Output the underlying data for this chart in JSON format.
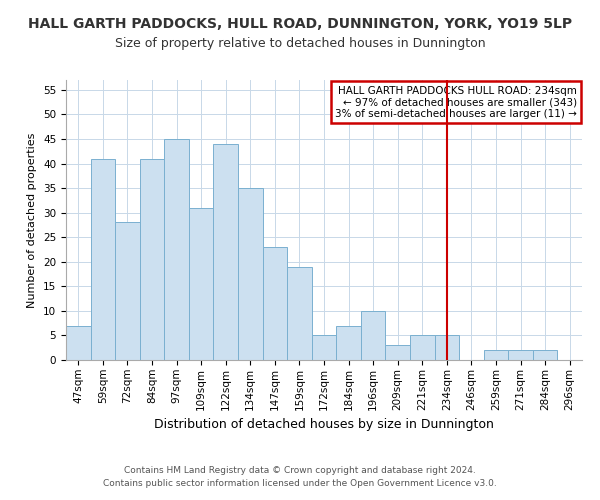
{
  "title": "HALL GARTH PADDOCKS, HULL ROAD, DUNNINGTON, YORK, YO19 5LP",
  "subtitle": "Size of property relative to detached houses in Dunnington",
  "xlabel": "Distribution of detached houses by size in Dunnington",
  "ylabel": "Number of detached properties",
  "bar_labels": [
    "47sqm",
    "59sqm",
    "72sqm",
    "84sqm",
    "97sqm",
    "109sqm",
    "122sqm",
    "134sqm",
    "147sqm",
    "159sqm",
    "172sqm",
    "184sqm",
    "196sqm",
    "209sqm",
    "221sqm",
    "234sqm",
    "246sqm",
    "259sqm",
    "271sqm",
    "284sqm",
    "296sqm"
  ],
  "bar_values": [
    7,
    41,
    28,
    41,
    45,
    31,
    44,
    35,
    23,
    19,
    5,
    7,
    10,
    3,
    5,
    5,
    0,
    2,
    2,
    2,
    0
  ],
  "bar_color": "#cce0f0",
  "bar_edge_color": "#7ab0d0",
  "ylim": [
    0,
    57
  ],
  "yticks": [
    0,
    5,
    10,
    15,
    20,
    25,
    30,
    35,
    40,
    45,
    50,
    55
  ],
  "vline_x_index": 15,
  "vline_color": "#cc0000",
  "annotation_title": "HALL GARTH PADDOCKS HULL ROAD: 234sqm",
  "annotation_line1": "← 97% of detached houses are smaller (343)",
  "annotation_line2": "3% of semi-detached houses are larger (11) →",
  "annotation_box_color": "#cc0000",
  "footer1": "Contains HM Land Registry data © Crown copyright and database right 2024.",
  "footer2": "Contains public sector information licensed under the Open Government Licence v3.0.",
  "background_color": "#ffffff",
  "grid_color": "#c8d8e8",
  "title_fontsize": 10,
  "subtitle_fontsize": 9,
  "xlabel_fontsize": 9,
  "ylabel_fontsize": 8,
  "tick_fontsize": 7.5,
  "annot_fontsize": 7.5,
  "footer_fontsize": 6.5
}
